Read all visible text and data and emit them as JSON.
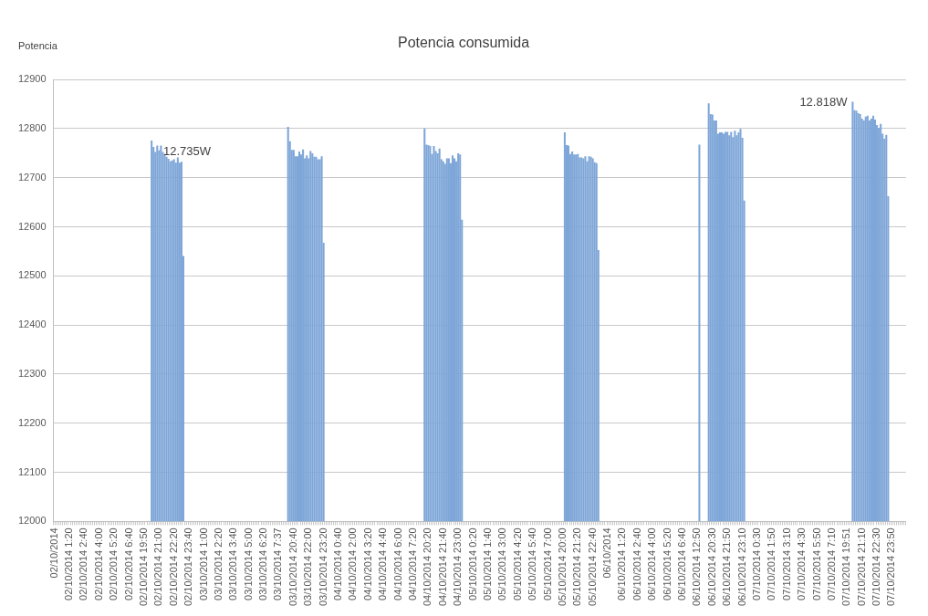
{
  "chart_data": {
    "type": "bar",
    "title": "Potencia consumida",
    "ylabel": "Potencia",
    "color": "#7ea6d8",
    "ylim": [
      12000,
      12900
    ],
    "yticks": [
      12000,
      12100,
      12200,
      12300,
      12400,
      12500,
      12600,
      12700,
      12800,
      12900
    ],
    "grid": "y",
    "legend": false,
    "annotations": [
      "12.735W",
      "12.818W"
    ],
    "categories": [
      "02/10/2014",
      null,
      null,
      null,
      null,
      null,
      null,
      null,
      "02/10/2014 1:20",
      null,
      null,
      null,
      null,
      null,
      null,
      null,
      "02/10/2014 2:40",
      null,
      null,
      null,
      null,
      null,
      null,
      null,
      "02/10/2014 4:00",
      null,
      null,
      null,
      null,
      null,
      null,
      null,
      "02/10/2014 5:20",
      null,
      null,
      null,
      null,
      null,
      null,
      null,
      "02/10/2014 6:40",
      null,
      null,
      null,
      null,
      null,
      null,
      null,
      "02/10/2014 19:50",
      null,
      null,
      null,
      null,
      null,
      null,
      null,
      "02/10/2014 21:00",
      null,
      null,
      null,
      null,
      null,
      null,
      null,
      "02/10/2014 22:20",
      null,
      null,
      null,
      null,
      null,
      null,
      null,
      "02/10/2014 23:40",
      null,
      null,
      null,
      null,
      null,
      null,
      null,
      "03/10/2014 1:00",
      null,
      null,
      null,
      null,
      null,
      null,
      null,
      "03/10/2014 2:20",
      null,
      null,
      null,
      null,
      null,
      null,
      null,
      "03/10/2014 3:40",
      null,
      null,
      null,
      null,
      null,
      null,
      null,
      "03/10/2014 5:00",
      null,
      null,
      null,
      null,
      null,
      null,
      null,
      "03/10/2014 6:20",
      null,
      null,
      null,
      null,
      null,
      null,
      null,
      "03/10/2014 7:37",
      null,
      null,
      null,
      null,
      null,
      null,
      null,
      "03/10/2014 20:40",
      null,
      null,
      null,
      null,
      null,
      null,
      null,
      "03/10/2014 22:00",
      null,
      null,
      null,
      null,
      null,
      null,
      null,
      "03/10/2014 23:20",
      null,
      null,
      null,
      null,
      null,
      null,
      null,
      "04/10/2014 0:40",
      null,
      null,
      null,
      null,
      null,
      null,
      null,
      "04/10/2014 2:00",
      null,
      null,
      null,
      null,
      null,
      null,
      null,
      "04/10/2014 3:20",
      null,
      null,
      null,
      null,
      null,
      null,
      null,
      "04/10/2014 4:40",
      null,
      null,
      null,
      null,
      null,
      null,
      null,
      "04/10/2014 6:00",
      null,
      null,
      null,
      null,
      null,
      null,
      null,
      "04/10/2014 7:20",
      null,
      null,
      null,
      null,
      null,
      null,
      null,
      "04/10/2014 20:20",
      null,
      null,
      null,
      null,
      null,
      null,
      null,
      "04/10/2014 21:40",
      null,
      null,
      null,
      null,
      null,
      null,
      null,
      "04/10/2014 23:00",
      null,
      null,
      null,
      null,
      null,
      null,
      null,
      "05/10/2014 0:20",
      null,
      null,
      null,
      null,
      null,
      null,
      null,
      "05/10/2014 1:40",
      null,
      null,
      null,
      null,
      null,
      null,
      null,
      "05/10/2014 3:00",
      null,
      null,
      null,
      null,
      null,
      null,
      null,
      "05/10/2014 4:20",
      null,
      null,
      null,
      null,
      null,
      null,
      null,
      "05/10/2014 5:40",
      null,
      null,
      null,
      null,
      null,
      null,
      null,
      "05/10/2014 7:00",
      null,
      null,
      null,
      null,
      null,
      null,
      null,
      "05/10/2014 20:00",
      null,
      null,
      null,
      null,
      null,
      null,
      null,
      "05/10/2014 21:20",
      null,
      null,
      null,
      null,
      null,
      null,
      null,
      "05/10/2014 22:40",
      null,
      null,
      null,
      null,
      null,
      null,
      null,
      "06/10/2014",
      null,
      null,
      null,
      null,
      null,
      null,
      null,
      "06/10/2014 1:20",
      null,
      null,
      null,
      null,
      null,
      null,
      null,
      "06/10/2014 2:40",
      null,
      null,
      null,
      null,
      null,
      null,
      null,
      "06/10/2014 4:00",
      null,
      null,
      null,
      null,
      null,
      null,
      null,
      "06/10/2014 5:20",
      null,
      null,
      null,
      null,
      null,
      null,
      null,
      "06/10/2014 6:40",
      null,
      null,
      null,
      null,
      null,
      null,
      null,
      "06/10/2014 12:50",
      null,
      null,
      null,
      null,
      null,
      null,
      null,
      "06/10/2014 20:30",
      null,
      null,
      null,
      null,
      null,
      null,
      null,
      "06/10/2014 21:50",
      null,
      null,
      null,
      null,
      null,
      null,
      null,
      "06/10/2014 23:10",
      null,
      null,
      null,
      null,
      null,
      null,
      null,
      "07/10/2014 0:30",
      null,
      null,
      null,
      null,
      null,
      null,
      null,
      "07/10/2014 1:50",
      null,
      null,
      null,
      null,
      null,
      null,
      null,
      "07/10/2014 3:10",
      null,
      null,
      null,
      null,
      null,
      null,
      null,
      "07/10/2014 4:30",
      null,
      null,
      null,
      null,
      null,
      null,
      null,
      "07/10/2014 5:50",
      null,
      null,
      null,
      null,
      null,
      null,
      null,
      "07/10/2014 7:10",
      null,
      null,
      null,
      null,
      null,
      null,
      null,
      "07/10/2014 19:51",
      null,
      null,
      null,
      null,
      null,
      null,
      null,
      "07/10/2014 21:10",
      null,
      null,
      null,
      null,
      null,
      null,
      null,
      "07/10/2014 22:30",
      null,
      null,
      null,
      null,
      null,
      null,
      null,
      "07/10/2014 23:50",
      null,
      null,
      null,
      null,
      null,
      null,
      null
    ],
    "values": [
      null,
      null,
      null,
      null,
      null,
      null,
      null,
      null,
      null,
      null,
      null,
      null,
      null,
      null,
      null,
      null,
      null,
      null,
      null,
      null,
      null,
      null,
      null,
      null,
      null,
      null,
      null,
      null,
      null,
      null,
      null,
      null,
      null,
      null,
      null,
      null,
      null,
      null,
      null,
      null,
      null,
      null,
      null,
      null,
      null,
      null,
      null,
      null,
      null,
      null,
      null,
      null,
      12775,
      12762,
      12752,
      12765,
      12755,
      12765,
      12752,
      12748,
      12742,
      12738,
      12733,
      12735,
      12737,
      12730,
      12741,
      12730,
      12732,
      12540,
      null,
      null,
      null,
      null,
      null,
      null,
      null,
      null,
      null,
      null,
      null,
      null,
      null,
      null,
      null,
      null,
      null,
      null,
      null,
      null,
      null,
      null,
      null,
      null,
      null,
      null,
      null,
      null,
      null,
      null,
      null,
      null,
      null,
      null,
      null,
      null,
      null,
      null,
      null,
      null,
      null,
      null,
      null,
      null,
      null,
      null,
      null,
      null,
      null,
      null,
      null,
      null,
      null,
      null,
      null,
      12803,
      12774,
      12756,
      12756,
      12743,
      12743,
      12753,
      12747,
      12757,
      12739,
      12745,
      12739,
      12754,
      12749,
      12742,
      12742,
      12737,
      12737,
      12743,
      12567,
      null,
      null,
      null,
      null,
      null,
      null,
      null,
      null,
      null,
      null,
      null,
      null,
      null,
      null,
      null,
      null,
      null,
      null,
      null,
      null,
      null,
      null,
      null,
      null,
      null,
      null,
      null,
      null,
      null,
      null,
      null,
      null,
      null,
      null,
      null,
      null,
      null,
      null,
      null,
      null,
      null,
      null,
      null,
      null,
      null,
      null,
      null,
      null,
      null,
      null,
      null,
      null,
      null,
      12800,
      12767,
      12766,
      12764,
      12748,
      12764,
      12754,
      12749,
      12759,
      12737,
      12733,
      12728,
      12739,
      12739,
      12729,
      12745,
      12739,
      12733,
      12749,
      12747,
      12614,
      null,
      null,
      null,
      null,
      null,
      null,
      null,
      null,
      null,
      null,
      null,
      null,
      null,
      null,
      null,
      null,
      null,
      null,
      null,
      null,
      null,
      null,
      null,
      null,
      null,
      null,
      null,
      null,
      null,
      null,
      null,
      null,
      null,
      null,
      null,
      null,
      null,
      null,
      null,
      null,
      null,
      null,
      null,
      null,
      null,
      null,
      null,
      null,
      null,
      null,
      null,
      null,
      null,
      null,
      12792,
      12766,
      12765,
      12748,
      12753,
      12747,
      12747,
      12748,
      12741,
      12741,
      12739,
      12743,
      12733,
      12743,
      12742,
      12739,
      12731,
      12729,
      12552,
      null,
      null,
      null,
      null,
      null,
      null,
      null,
      null,
      null,
      null,
      null,
      null,
      null,
      null,
      null,
      null,
      null,
      null,
      null,
      null,
      null,
      null,
      null,
      null,
      null,
      null,
      null,
      null,
      null,
      null,
      null,
      null,
      null,
      null,
      null,
      null,
      null,
      null,
      null,
      null,
      null,
      null,
      null,
      null,
      null,
      null,
      null,
      null,
      null,
      null,
      null,
      null,
      null,
      12767,
      null,
      null,
      null,
      null,
      12851,
      12829,
      12828,
      12816,
      12816,
      12789,
      12792,
      12792,
      12789,
      12793,
      12793,
      12786,
      12793,
      12782,
      12795,
      12786,
      12792,
      12799,
      12781,
      12653,
      null,
      null,
      null,
      null,
      null,
      null,
      null,
      null,
      null,
      null,
      null,
      null,
      null,
      null,
      null,
      null,
      null,
      null,
      null,
      null,
      null,
      null,
      null,
      null,
      null,
      null,
      null,
      null,
      null,
      null,
      null,
      null,
      null,
      null,
      null,
      null,
      null,
      null,
      null,
      null,
      null,
      null,
      null,
      null,
      null,
      null,
      null,
      null,
      null,
      null,
      null,
      null,
      null,
      null,
      null,
      null,
      null,
      12854,
      12837,
      12836,
      12831,
      12829,
      12820,
      12816,
      12824,
      12826,
      12816,
      12820,
      12826,
      12818,
      12807,
      12801,
      12809,
      12789,
      12779,
      12787,
      12662,
      null,
      null,
      null,
      null,
      null,
      null,
      null,
      null,
      null
    ]
  }
}
